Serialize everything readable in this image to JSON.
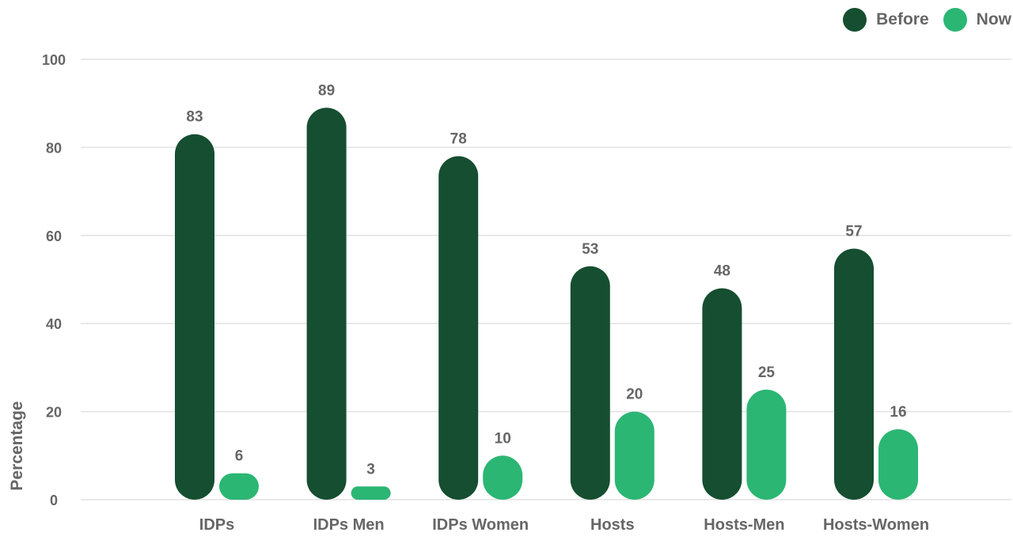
{
  "chart_data": {
    "type": "bar",
    "ylabel": "Percentage",
    "xlabel": "",
    "ylim": [
      0,
      100
    ],
    "yticks": [
      0,
      20,
      40,
      60,
      80,
      100
    ],
    "categories": [
      "IDPs",
      "IDPs Men",
      "IDPs Women",
      "Hosts",
      "Hosts-Men",
      "Hosts-Women"
    ],
    "series": [
      {
        "name": "Before",
        "color": "#154e30",
        "values": [
          83,
          89,
          78,
          53,
          48,
          57
        ]
      },
      {
        "name": "Now",
        "color": "#2bb673",
        "values": [
          6,
          3,
          10,
          20,
          25,
          16
        ]
      }
    ],
    "grid": true,
    "legend_position": "top-right"
  }
}
